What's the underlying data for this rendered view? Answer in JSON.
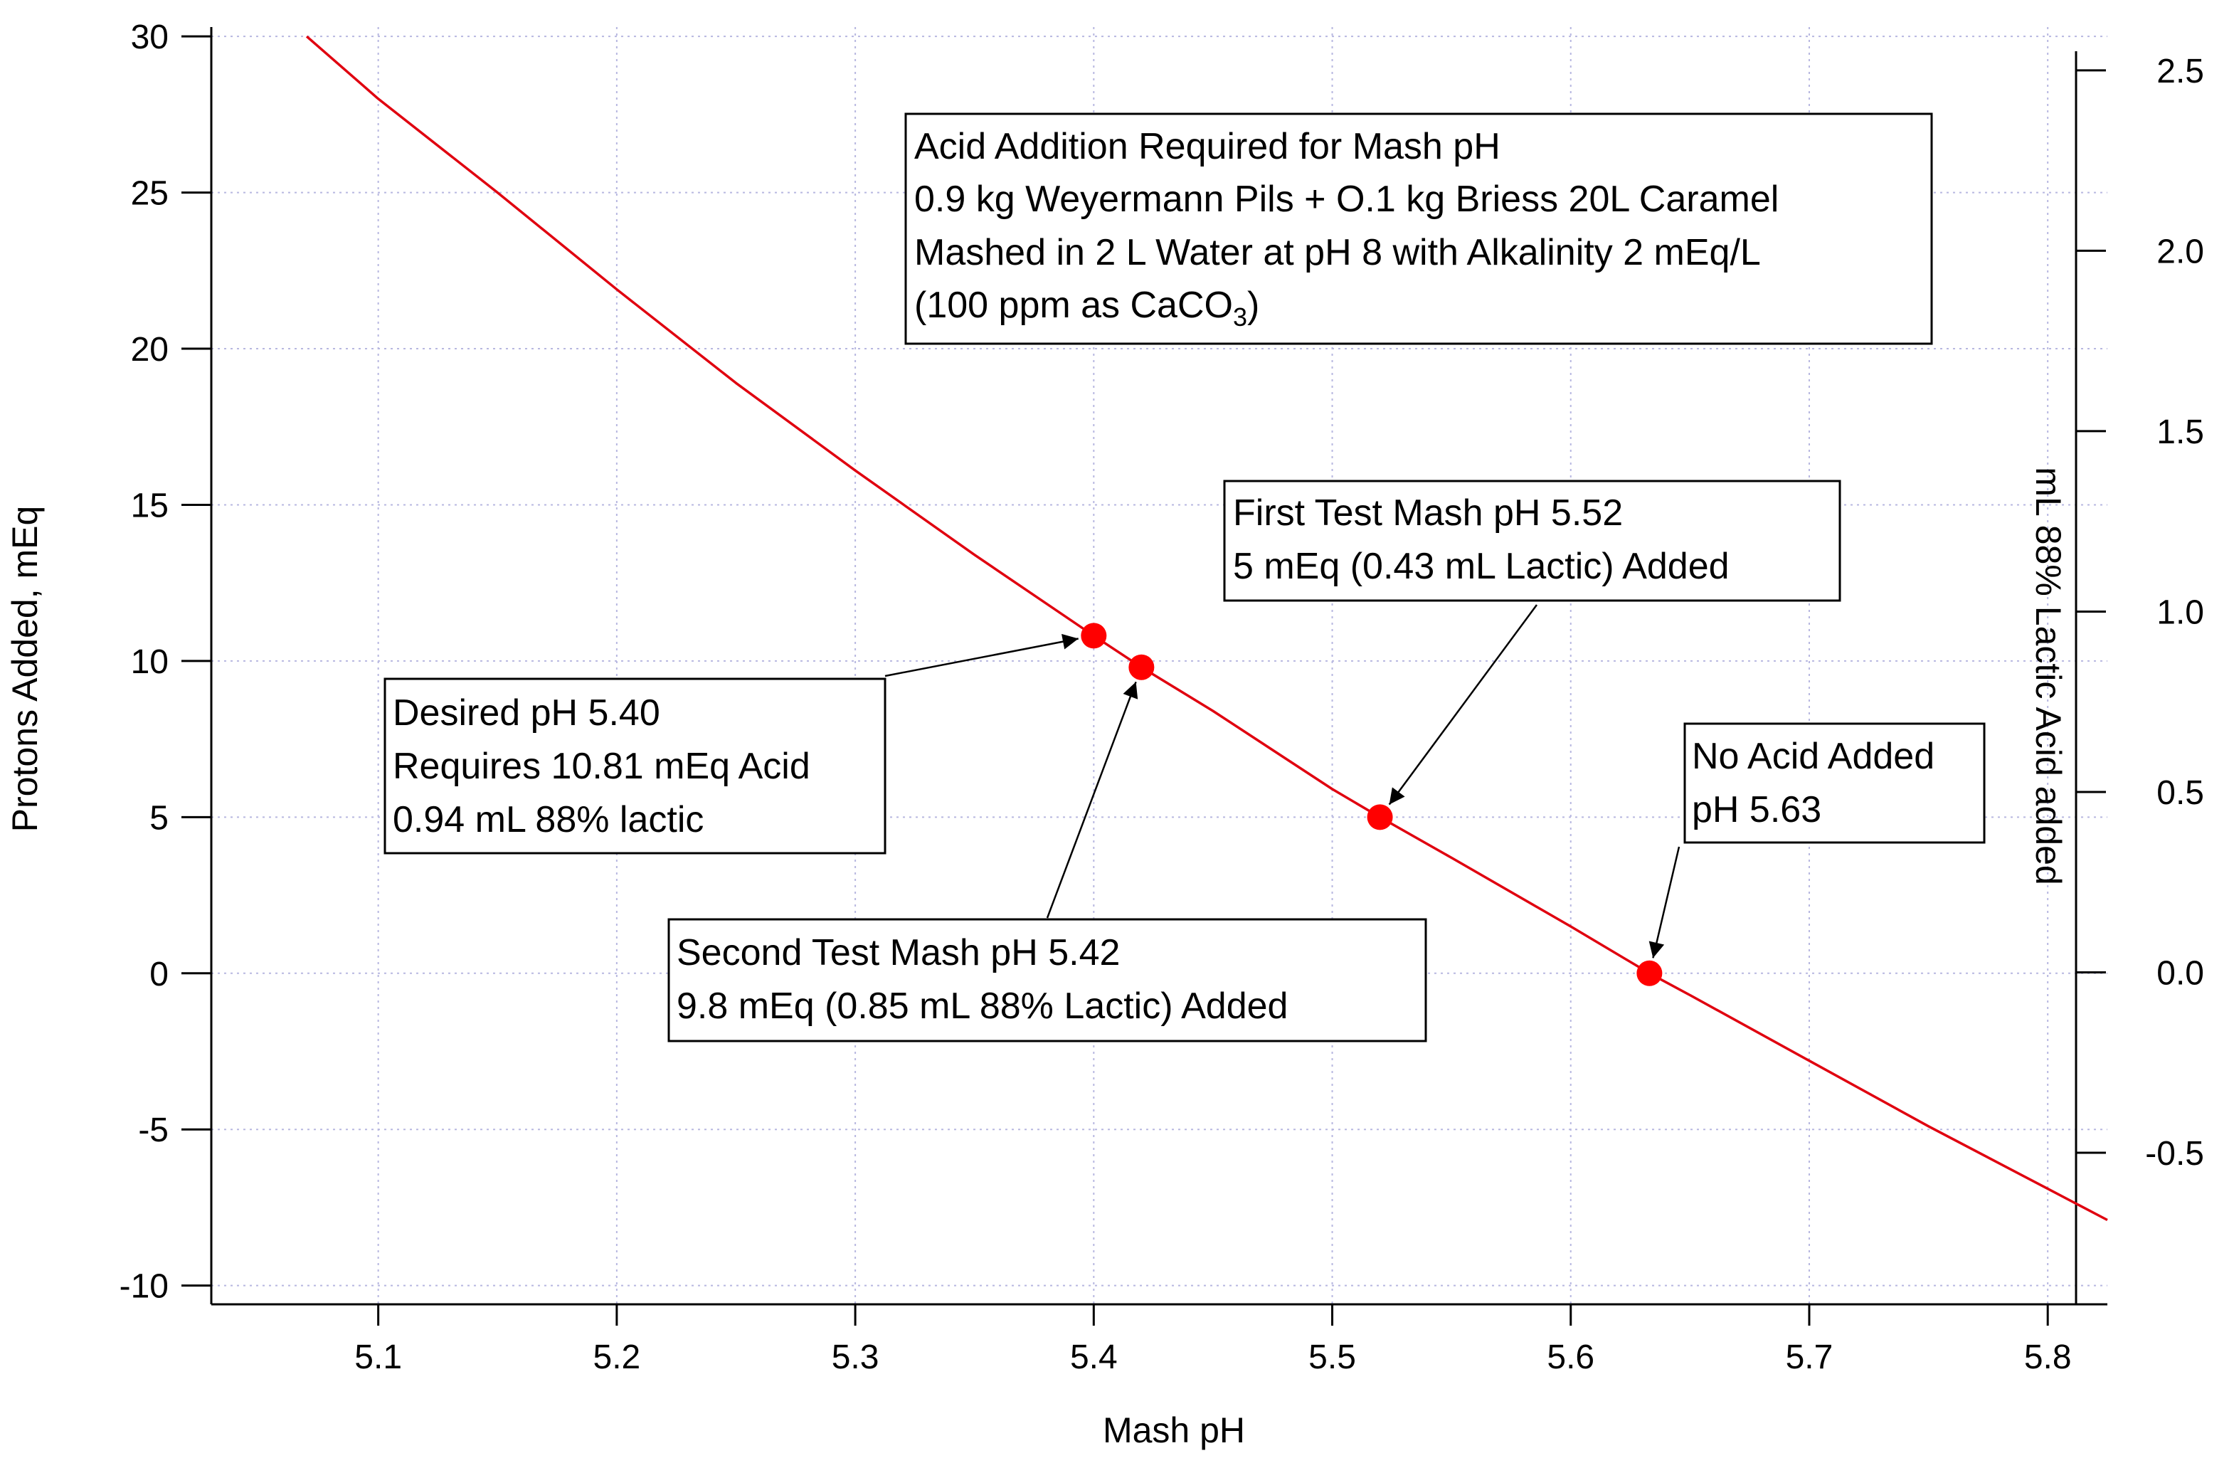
{
  "chart_data": {
    "type": "line",
    "xlabel": "Mash pH",
    "ylabel": "Protons Added, mEq",
    "y2label": "mL 88% Lactic Acid added",
    "xlim": [
      5.03,
      5.825
    ],
    "ylim": [
      -10.6,
      30.3
    ],
    "y2lim": [
      -0.92,
      2.62
    ],
    "xticks": [
      5.1,
      5.2,
      5.3,
      5.4,
      5.5,
      5.6,
      5.7,
      5.8
    ],
    "yticks": [
      30,
      25,
      20,
      15,
      10,
      5,
      0,
      -5,
      -10
    ],
    "y2ticks": [
      2.5,
      2.0,
      1.5,
      1.0,
      0.5,
      0.0,
      -0.5
    ],
    "y2tick_labels": [
      "2.5",
      "2.0",
      "1.5",
      "1.0",
      "0.5",
      "0.0",
      "-0.5"
    ],
    "grid": true,
    "series": [
      {
        "color": "#e0000f",
        "x": [
          5.07,
          5.1,
          5.15,
          5.2,
          5.25,
          5.3,
          5.35,
          5.4,
          5.42,
          5.45,
          5.5,
          5.52,
          5.55,
          5.6,
          5.633,
          5.65,
          5.7,
          5.75,
          5.8,
          5.825
        ],
        "y": [
          30.0,
          28.0,
          25.0,
          21.9,
          18.9,
          16.1,
          13.4,
          10.81,
          9.8,
          8.4,
          5.9,
          5.0,
          3.7,
          1.5,
          0.0,
          -0.7,
          -2.8,
          -4.9,
          -6.9,
          -7.9
        ]
      }
    ],
    "points": [
      {
        "x": 5.4,
        "y": 10.81
      },
      {
        "x": 5.42,
        "y": 9.8
      },
      {
        "x": 5.52,
        "y": 5.0
      },
      {
        "x": 5.633,
        "y": 0.0
      }
    ],
    "annotations": [
      {
        "id": "acid-addition-title-box",
        "lines": [
          "Acid Addition Required for Mash pH",
          "0.9 kg Weyermann Pils + O.1 kg  Briess 20L Caramel",
          "Mashed in 2 L Water at pH 8 with Alkalinity 2 mEq/L",
          "(100 ppm as CaCO3)"
        ]
      },
      {
        "id": "first-test-box",
        "lines": [
          "First Test Mash pH  5.52",
          "5 mEq (0.43 mL Lactic) Added"
        ],
        "arrow_to": {
          "x": 5.52,
          "y": 5.0
        }
      },
      {
        "id": "desired-ph-box",
        "lines": [
          "Desired pH 5.40",
          "Requires 10.81 mEq Acid",
          "0.94 mL 88% lactic"
        ],
        "arrow_to": {
          "x": 5.4,
          "y": 10.81
        }
      },
      {
        "id": "no-acid-box",
        "lines": [
          "No Acid Added",
          "pH 5.63"
        ],
        "arrow_to": {
          "x": 5.633,
          "y": 0.0
        }
      },
      {
        "id": "second-test-box",
        "lines": [
          "Second Test Mash pH 5.42",
          "9.8 mEq (0.85 mL 88% Lactic) Added"
        ],
        "arrow_to": {
          "x": 5.42,
          "y": 9.8
        }
      }
    ]
  }
}
